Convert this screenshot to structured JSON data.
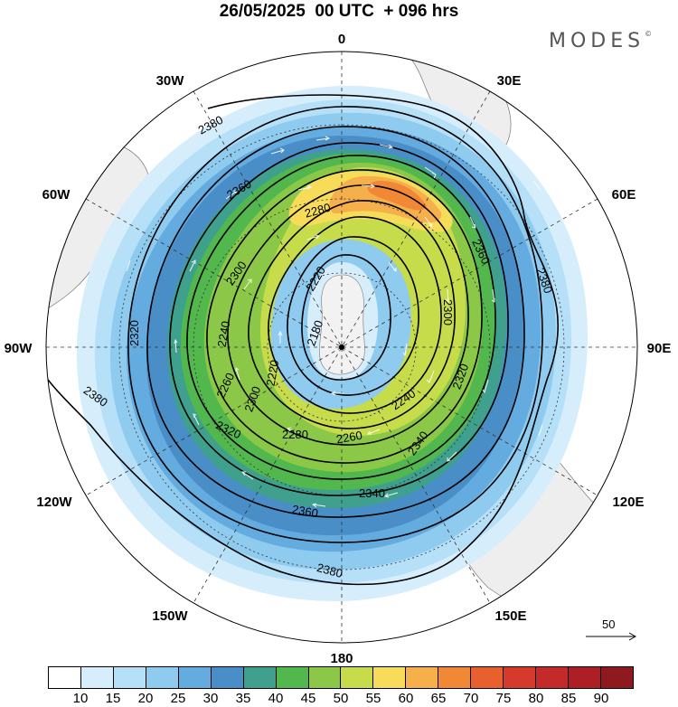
{
  "header": {
    "title": "26/05/2025  00 UTC  + 096 hrs",
    "brand": "MODES"
  },
  "map": {
    "projection": "south polar stereographic",
    "longitude_labels": [
      {
        "name": "0",
        "angle": 0
      },
      {
        "name": "30E",
        "angle": 30
      },
      {
        "name": "60E",
        "angle": 60
      },
      {
        "name": "90E",
        "angle": 90
      },
      {
        "name": "120E",
        "angle": 120
      },
      {
        "name": "150E",
        "angle": 150
      },
      {
        "name": "180",
        "angle": 180
      },
      {
        "name": "150W",
        "angle": 210
      },
      {
        "name": "120W",
        "angle": 240
      },
      {
        "name": "90W",
        "angle": 270
      },
      {
        "name": "60W",
        "angle": 300
      },
      {
        "name": "30W",
        "angle": 330
      }
    ],
    "contour_labels": [
      "2380",
      "2360",
      "2300",
      "2280",
      "2220",
      "2180",
      "2360",
      "2380",
      "2320",
      "2300",
      "2240",
      "2220",
      "2260",
      "2280",
      "2260",
      "2240",
      "2320",
      "2340",
      "2360",
      "2380",
      "2380",
      "2340",
      "2300",
      "2320"
    ],
    "wind_reference": {
      "value": "50"
    }
  },
  "legend": {
    "ticks": [
      "10",
      "15",
      "20",
      "25",
      "30",
      "35",
      "40",
      "45",
      "50",
      "55",
      "60",
      "65",
      "70",
      "75",
      "80",
      "85",
      "90"
    ],
    "colors": [
      "#ffffff",
      "#d6eefb",
      "#b6e0f8",
      "#8fcbef",
      "#64abe0",
      "#4a8ec8",
      "#3fa08d",
      "#52b84e",
      "#8bc847",
      "#c6dc4b",
      "#f7dc5a",
      "#f6b04b",
      "#f08835",
      "#e8602e",
      "#d63a2c",
      "#c42a2a",
      "#ad1f24",
      "#8e1a1f"
    ]
  }
}
